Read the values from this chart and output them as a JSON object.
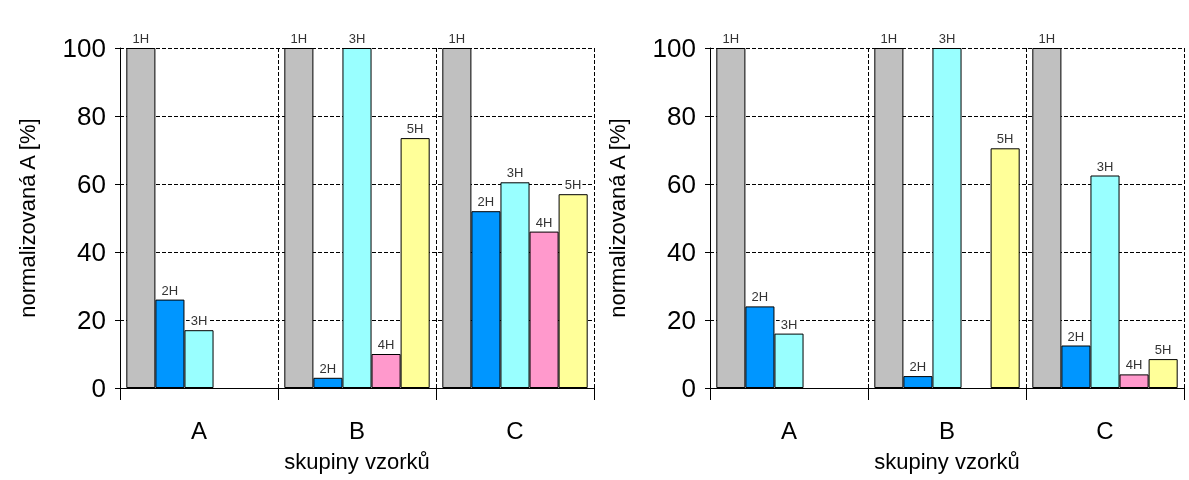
{
  "chart_data": [
    {
      "type": "bar",
      "xlabel": "skupiny vzorků",
      "ylabel": "normalizovaná A [%]",
      "categories": [
        "A",
        "B",
        "C"
      ],
      "ylim": [
        0,
        100
      ],
      "yticks": [
        0,
        20,
        40,
        60,
        80,
        100
      ],
      "grid": true,
      "legend": false,
      "series": [
        {
          "name": "1H",
          "color": "#c0c0c0",
          "values": [
            100,
            100,
            100
          ]
        },
        {
          "name": "2H",
          "color": "#0096ff",
          "values": [
            26,
            3,
            52
          ]
        },
        {
          "name": "3H",
          "color": "#99ffff",
          "values": [
            17,
            100,
            60.5
          ]
        },
        {
          "name": "4H",
          "color": "#ff99cc",
          "values": [
            null,
            10,
            46
          ]
        },
        {
          "name": "5H",
          "color": "#ffff99",
          "values": [
            null,
            73.5,
            57
          ]
        }
      ]
    },
    {
      "type": "bar",
      "xlabel": "skupiny vzorků",
      "ylabel": "normalizovaná A [%]",
      "categories": [
        "A",
        "B",
        "C"
      ],
      "ylim": [
        0,
        100
      ],
      "yticks": [
        0,
        20,
        40,
        60,
        80,
        100
      ],
      "grid": true,
      "legend": false,
      "series": [
        {
          "name": "1H",
          "color": "#c0c0c0",
          "values": [
            100,
            100,
            100
          ]
        },
        {
          "name": "2H",
          "color": "#0096ff",
          "values": [
            24,
            3.5,
            12.5
          ]
        },
        {
          "name": "3H",
          "color": "#99ffff",
          "values": [
            16,
            100,
            62.5
          ]
        },
        {
          "name": "4H",
          "color": "#ff99cc",
          "values": [
            null,
            null,
            4
          ]
        },
        {
          "name": "5H",
          "color": "#ffff99",
          "values": [
            null,
            70.5,
            8.5
          ]
        }
      ]
    }
  ]
}
